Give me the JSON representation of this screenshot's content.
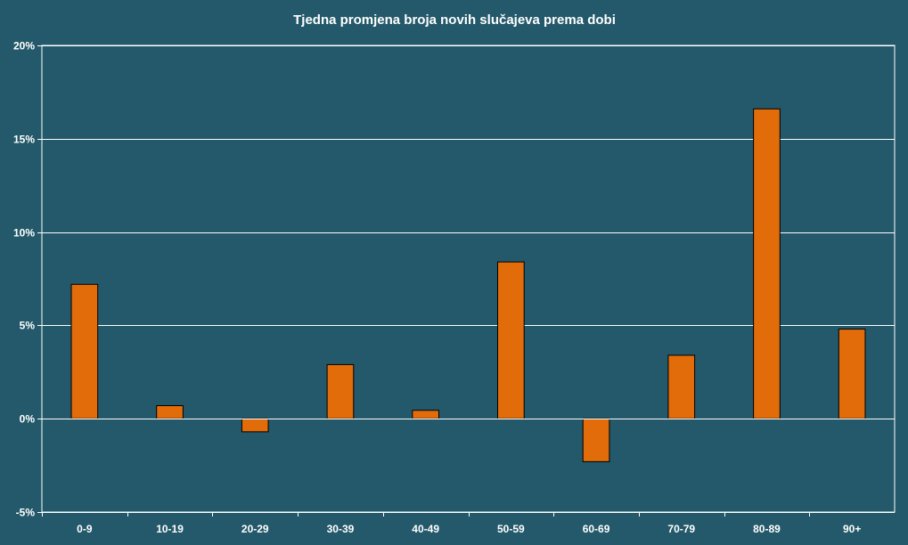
{
  "chart_data": {
    "type": "bar",
    "title": "Tjedna promjena broja novih slučajeva prema dobi",
    "xlabel": "",
    "ylabel": "",
    "categories": [
      "0-9",
      "10-19",
      "20-29",
      "30-39",
      "40-49",
      "50-59",
      "60-69",
      "70-79",
      "80-89",
      "90+"
    ],
    "series": [
      {
        "values": [
          7.2,
          0.7,
          -0.7,
          2.9,
          0.45,
          8.4,
          -2.3,
          3.4,
          16.6,
          4.8
        ]
      }
    ],
    "ylim": [
      -5,
      20
    ],
    "yticks": [
      -5,
      0,
      5,
      10,
      15,
      20
    ],
    "ytick_labels": [
      "-5%",
      "0%",
      "5%",
      "10%",
      "15%",
      "20%"
    ],
    "grid": true,
    "legend": "none",
    "colors": {
      "background": "#23596a",
      "bar_fill": "#e26b0a",
      "bar_stroke": "#000000",
      "gridline": "#ffffff",
      "text": "#ffffff"
    }
  }
}
